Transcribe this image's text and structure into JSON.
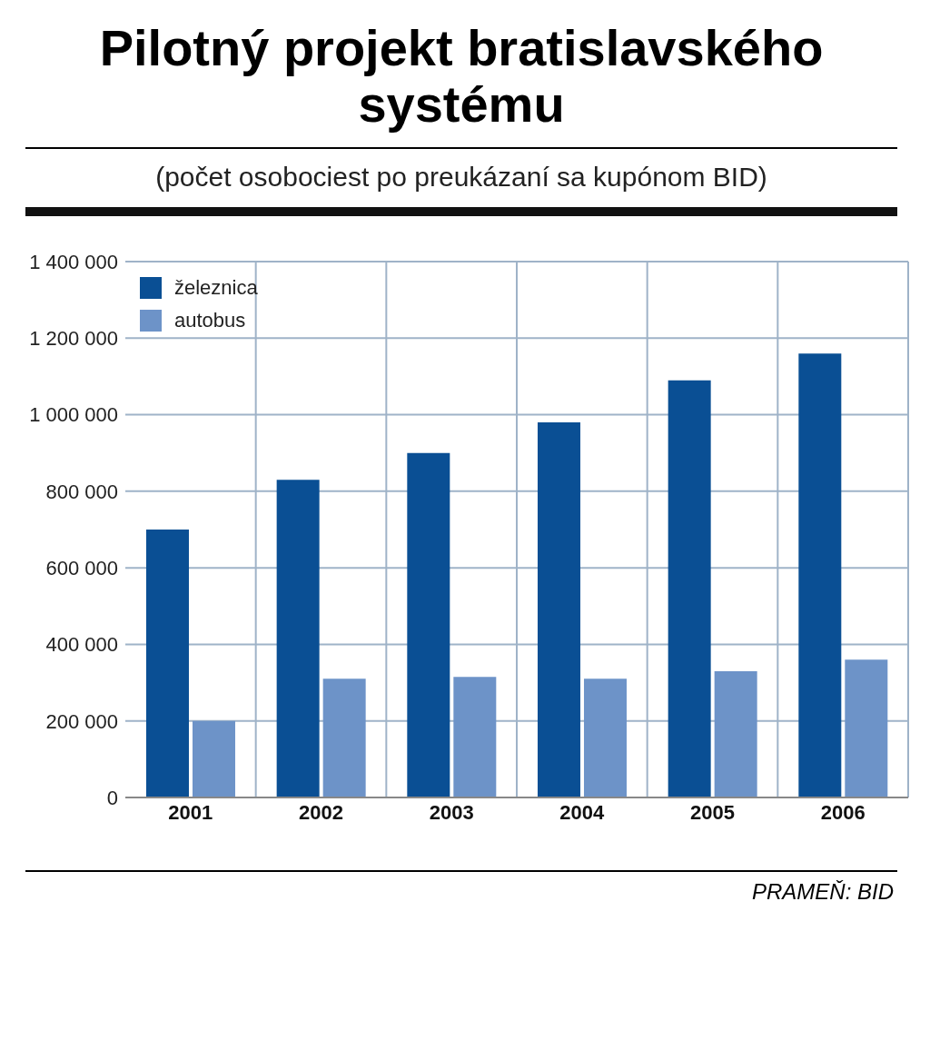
{
  "chart_data": {
    "type": "bar",
    "title": "Pilotný projekt bratislavského systému",
    "subtitle": "(počet osobociest po preukázaní sa kupónom BID)",
    "categories": [
      "2001",
      "2002",
      "2003",
      "2004",
      "2005",
      "2006"
    ],
    "series": [
      {
        "name": "železnica",
        "color": "#0a4f94",
        "values": [
          700000,
          830000,
          900000,
          980000,
          1090000,
          1160000
        ]
      },
      {
        "name": "autobus",
        "color": "#6d93c8",
        "values": [
          200000,
          310000,
          315000,
          310000,
          330000,
          360000
        ]
      }
    ],
    "ylim": [
      0,
      1400000
    ],
    "yticks": [
      {
        "value": 0,
        "label": "0"
      },
      {
        "value": 200000,
        "label": "200 000"
      },
      {
        "value": 400000,
        "label": "400 000"
      },
      {
        "value": 600000,
        "label": "600 000"
      },
      {
        "value": 800000,
        "label": "800 000"
      },
      {
        "value": 1000000,
        "label": "1 000 000"
      },
      {
        "value": 1200000,
        "label": "1 200 000"
      },
      {
        "value": 1400000,
        "label": "1 400 000"
      }
    ],
    "grid": true,
    "legend": "top left",
    "annotations": [
      "PRAMEŇ: BID"
    ]
  }
}
